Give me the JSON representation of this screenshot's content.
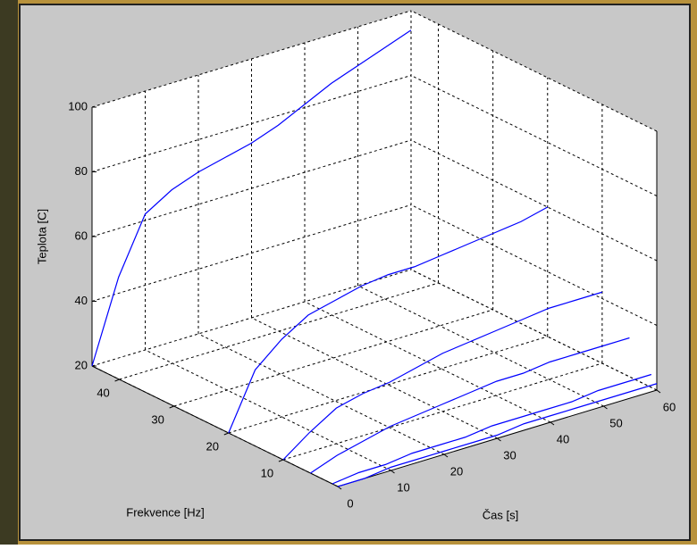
{
  "chart_data": {
    "type": "line3d",
    "xlabel": "Čas [s]",
    "ylabel": "Frekvence [Hz]",
    "zlabel": "Teplota [C]",
    "x": [
      0,
      5,
      10,
      15,
      20,
      25,
      30,
      35,
      40,
      45,
      50,
      55,
      60
    ],
    "series": [
      {
        "y": 45,
        "color": "#0000ff",
        "values": [
          20,
          45,
          62,
          67,
          70,
          72,
          74,
          77,
          81,
          85,
          88,
          91,
          94
        ]
      },
      {
        "y": 20,
        "color": "#0000ff",
        "values": [
          20,
          37,
          44,
          49,
          51,
          53,
          54,
          54,
          55,
          56,
          57,
          58,
          60
        ]
      },
      {
        "y": 10,
        "color": "#0000ff",
        "values": [
          20,
          26,
          31,
          33,
          34,
          36,
          38,
          39,
          40,
          41,
          42,
          42,
          42
        ]
      },
      {
        "y": 5,
        "color": "#0000ff",
        "values": [
          20,
          23,
          25,
          27,
          28,
          29,
          30,
          31,
          31,
          32,
          32,
          32,
          32
        ]
      },
      {
        "y": 1,
        "color": "#0000ff",
        "values": [
          20,
          21,
          21,
          22,
          22,
          22,
          23,
          23,
          23,
          23,
          24,
          24,
          24
        ]
      },
      {
        "y": 0,
        "color": "#0000ff",
        "values": [
          20,
          20,
          21,
          21,
          21,
          21,
          21,
          22,
          22,
          22,
          22,
          22,
          22
        ]
      }
    ],
    "xlim": [
      0,
      60
    ],
    "xticks": [
      0,
      10,
      20,
      30,
      40,
      50,
      60
    ],
    "ylim": [
      0,
      45
    ],
    "yticks": [
      10,
      20,
      30,
      40
    ],
    "zlim": [
      20,
      100
    ],
    "zticks": [
      20,
      40,
      60,
      80,
      100
    ],
    "grid": true
  }
}
